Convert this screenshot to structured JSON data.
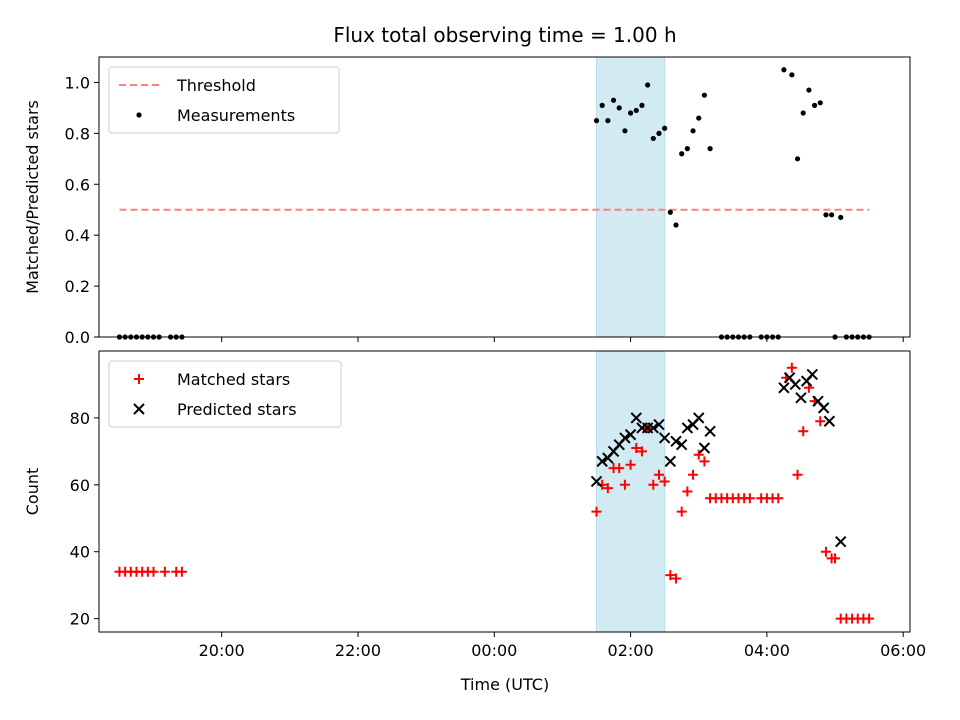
{
  "chart_data": {
    "type": "scatter",
    "title": "Flux total observing time = 1.00 h",
    "xlabel": "Time (UTC)",
    "x_tick_labels": [
      "20:00",
      "22:00",
      "00:00",
      "02:00",
      "04:00",
      "06:00"
    ],
    "highlight_band": {
      "x_start": "01:30",
      "x_end": "02:30",
      "color": "#add8e6"
    },
    "panels": [
      {
        "ylabel": "Matched/Predicted stars",
        "ylim": [
          0,
          1.1
        ],
        "y_ticks": [
          "0.0",
          "0.2",
          "0.4",
          "0.6",
          "0.8",
          "1.0"
        ],
        "legend": {
          "placement": "upper-left",
          "entries": [
            "Threshold",
            "Measurements"
          ]
        },
        "series": [
          {
            "name": "Threshold",
            "kind": "dashed-line",
            "color": "#ff7f7f",
            "x": [
              "18:30",
              "05:30"
            ],
            "y": [
              0.5,
              0.5
            ]
          },
          {
            "name": "Measurements",
            "kind": "dot",
            "color": "#000000",
            "points": [
              [
                "18:30",
                0
              ],
              [
                "18:35",
                0
              ],
              [
                "18:40",
                0
              ],
              [
                "18:45",
                0
              ],
              [
                "18:50",
                0
              ],
              [
                "18:55",
                0
              ],
              [
                "19:00",
                0
              ],
              [
                "19:05",
                0
              ],
              [
                "19:15",
                0
              ],
              [
                "19:20",
                0
              ],
              [
                "19:25",
                0
              ],
              [
                "01:30",
                0.85
              ],
              [
                "01:35",
                0.91
              ],
              [
                "01:40",
                0.85
              ],
              [
                "01:45",
                0.93
              ],
              [
                "01:50",
                0.9
              ],
              [
                "01:55",
                0.81
              ],
              [
                "02:00",
                0.88
              ],
              [
                "02:05",
                0.89
              ],
              [
                "02:10",
                0.91
              ],
              [
                "02:15",
                0.99
              ],
              [
                "02:20",
                0.78
              ],
              [
                "02:25",
                0.8
              ],
              [
                "02:30",
                0.82
              ],
              [
                "02:35",
                0.49
              ],
              [
                "02:40",
                0.44
              ],
              [
                "02:45",
                0.72
              ],
              [
                "02:50",
                0.74
              ],
              [
                "02:55",
                0.81
              ],
              [
                "03:00",
                0.86
              ],
              [
                "03:05",
                0.95
              ],
              [
                "03:10",
                0.74
              ],
              [
                "03:20",
                0
              ],
              [
                "03:25",
                0
              ],
              [
                "03:30",
                0
              ],
              [
                "03:35",
                0
              ],
              [
                "03:40",
                0
              ],
              [
                "03:45",
                0
              ],
              [
                "03:55",
                0
              ],
              [
                "04:00",
                0
              ],
              [
                "04:05",
                0
              ],
              [
                "04:10",
                0
              ],
              [
                "04:15",
                1.05
              ],
              [
                "04:22",
                1.03
              ],
              [
                "04:27",
                0.7
              ],
              [
                "04:32",
                0.88
              ],
              [
                "04:37",
                0.97
              ],
              [
                "04:42",
                0.91
              ],
              [
                "04:47",
                0.92
              ],
              [
                "04:52",
                0.48
              ],
              [
                "04:57",
                0.48
              ],
              [
                "05:05",
                0.47
              ],
              [
                "05:00",
                0
              ],
              [
                "05:10",
                0
              ],
              [
                "05:15",
                0
              ],
              [
                "05:20",
                0
              ],
              [
                "05:25",
                0
              ],
              [
                "05:30",
                0
              ]
            ]
          }
        ]
      },
      {
        "ylabel": "Count",
        "ylim": [
          16,
          100
        ],
        "y_ticks": [
          "20",
          "40",
          "60",
          "80"
        ],
        "legend": {
          "placement": "upper-left",
          "entries": [
            "Matched stars",
            "Predicted stars"
          ]
        },
        "series": [
          {
            "name": "Matched stars",
            "kind": "plus",
            "color": "#ff0000",
            "points": [
              [
                "18:30",
                34
              ],
              [
                "18:35",
                34
              ],
              [
                "18:40",
                34
              ],
              [
                "18:45",
                34
              ],
              [
                "18:50",
                34
              ],
              [
                "18:55",
                34
              ],
              [
                "19:00",
                34
              ],
              [
                "19:10",
                34
              ],
              [
                "19:20",
                34
              ],
              [
                "19:25",
                34
              ],
              [
                "01:30",
                52
              ],
              [
                "01:35",
                60
              ],
              [
                "01:40",
                59
              ],
              [
                "01:45",
                65
              ],
              [
                "01:50",
                65
              ],
              [
                "01:55",
                60
              ],
              [
                "02:00",
                66
              ],
              [
                "02:05",
                71
              ],
              [
                "02:10",
                70
              ],
              [
                "02:15",
                77
              ],
              [
                "02:20",
                60
              ],
              [
                "02:25",
                63
              ],
              [
                "02:30",
                61
              ],
              [
                "02:35",
                33
              ],
              [
                "02:40",
                32
              ],
              [
                "02:45",
                52
              ],
              [
                "02:50",
                58
              ],
              [
                "02:55",
                63
              ],
              [
                "03:00",
                69
              ],
              [
                "03:05",
                67
              ],
              [
                "03:10",
                56
              ],
              [
                "03:15",
                56
              ],
              [
                "03:20",
                56
              ],
              [
                "03:25",
                56
              ],
              [
                "03:30",
                56
              ],
              [
                "03:35",
                56
              ],
              [
                "03:40",
                56
              ],
              [
                "03:45",
                56
              ],
              [
                "03:55",
                56
              ],
              [
                "04:00",
                56
              ],
              [
                "04:05",
                56
              ],
              [
                "04:10",
                56
              ],
              [
                "04:17",
                92
              ],
              [
                "04:22",
                95
              ],
              [
                "04:27",
                63
              ],
              [
                "04:32",
                76
              ],
              [
                "04:37",
                89
              ],
              [
                "04:42",
                85
              ],
              [
                "04:47",
                79
              ],
              [
                "04:52",
                40
              ],
              [
                "04:57",
                38
              ],
              [
                "05:00",
                38
              ],
              [
                "05:05",
                20
              ],
              [
                "05:10",
                20
              ],
              [
                "05:15",
                20
              ],
              [
                "05:20",
                20
              ],
              [
                "05:25",
                20
              ],
              [
                "05:30",
                20
              ]
            ]
          },
          {
            "name": "Predicted stars",
            "kind": "x",
            "color": "#000000",
            "points": [
              [
                "01:30",
                61
              ],
              [
                "01:35",
                67
              ],
              [
                "01:40",
                68
              ],
              [
                "01:45",
                70
              ],
              [
                "01:50",
                72
              ],
              [
                "01:55",
                74
              ],
              [
                "02:00",
                75
              ],
              [
                "02:05",
                80
              ],
              [
                "02:10",
                77
              ],
              [
                "02:15",
                77
              ],
              [
                "02:20",
                77
              ],
              [
                "02:25",
                78
              ],
              [
                "02:30",
                74
              ],
              [
                "02:35",
                67
              ],
              [
                "02:40",
                73
              ],
              [
                "02:45",
                72
              ],
              [
                "02:50",
                77
              ],
              [
                "02:55",
                78
              ],
              [
                "03:00",
                80
              ],
              [
                "03:05",
                71
              ],
              [
                "03:10",
                76
              ],
              [
                "04:15",
                89
              ],
              [
                "04:20",
                92
              ],
              [
                "04:25",
                90
              ],
              [
                "04:30",
                86
              ],
              [
                "04:35",
                91
              ],
              [
                "04:40",
                93
              ],
              [
                "04:45",
                85
              ],
              [
                "04:50",
                83
              ],
              [
                "04:55",
                79
              ],
              [
                "05:05",
                43
              ]
            ]
          }
        ]
      }
    ]
  }
}
